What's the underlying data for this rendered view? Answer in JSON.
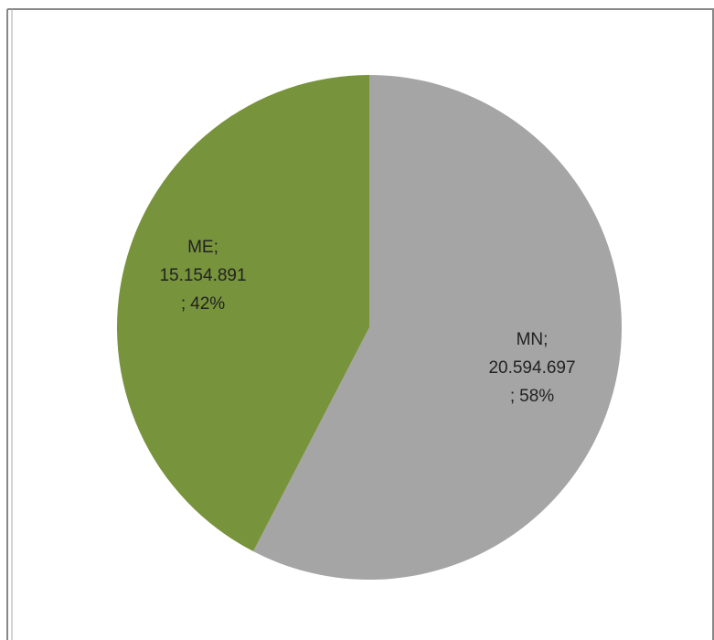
{
  "chart_data": {
    "type": "pie",
    "categories": [
      "MN",
      "ME"
    ],
    "values": [
      20594697,
      15154891
    ],
    "value_labels": [
      "20.594.697",
      "15.154.891"
    ],
    "percents": [
      58,
      42
    ],
    "percent_labels": [
      "58%",
      "42%"
    ],
    "label_separator": ";",
    "colors": [
      "#a5a5a5",
      "#77933c"
    ]
  }
}
